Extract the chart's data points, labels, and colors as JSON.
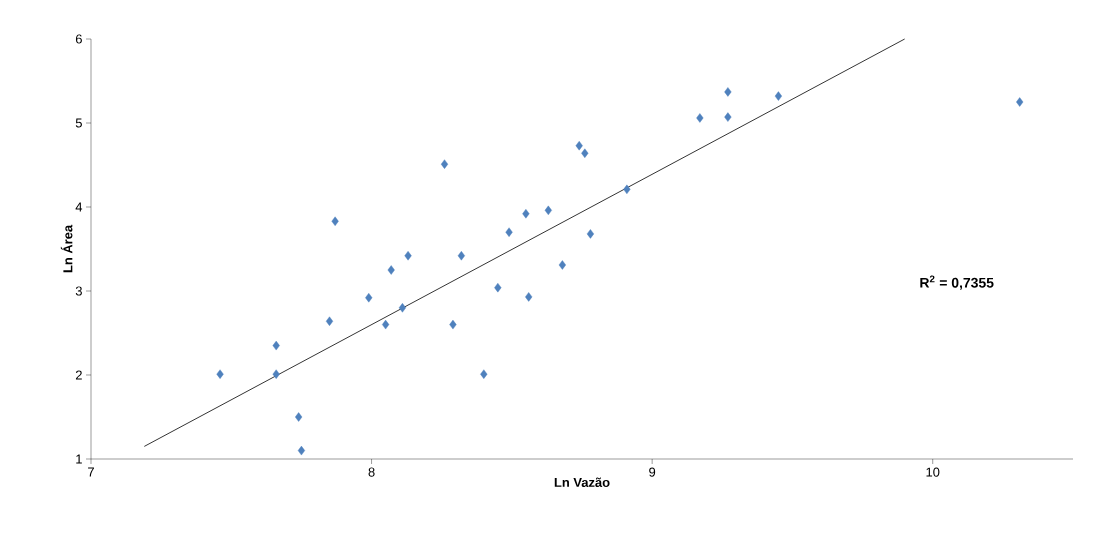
{
  "chart_data": {
    "type": "scatter",
    "xlabel": "Ln Vazão",
    "ylabel": "Ln Área",
    "xlim": [
      7,
      10.5
    ],
    "ylim": [
      1,
      6
    ],
    "xticks": [
      7,
      8,
      9,
      10
    ],
    "yticks": [
      1,
      2,
      3,
      4,
      5,
      6
    ],
    "grid": false,
    "marker": "diamond",
    "annotations": [
      "R$^{2}$ = 0,7355"
    ],
    "series": [
      {
        "color": "#4f81bd",
        "x": [
          7.46,
          7.66,
          7.66,
          7.74,
          7.75,
          7.87,
          7.85,
          7.99,
          8.05,
          8.07,
          8.11,
          8.13,
          8.26,
          8.29,
          8.32,
          8.4,
          8.45,
          8.49,
          8.55,
          8.56,
          8.63,
          8.68,
          8.74,
          8.76,
          8.78,
          8.91,
          9.17,
          9.27,
          9.27,
          9.45,
          10.31
        ],
        "values": [
          2.01,
          2.35,
          2.01,
          1.5,
          1.1,
          3.83,
          2.64,
          2.92,
          2.6,
          3.25,
          2.8,
          3.42,
          4.51,
          2.6,
          3.42,
          2.01,
          3.04,
          3.7,
          3.92,
          2.93,
          3.96,
          3.31,
          4.73,
          4.64,
          3.68,
          4.21,
          5.06,
          5.37,
          5.07,
          5.32,
          5.25
        ]
      },
      {
        "type": "line",
        "color": "#000000",
        "marker": "none",
        "x": [
          7.19,
          9.9
        ],
        "values": [
          1.15,
          6.0
        ]
      }
    ]
  }
}
